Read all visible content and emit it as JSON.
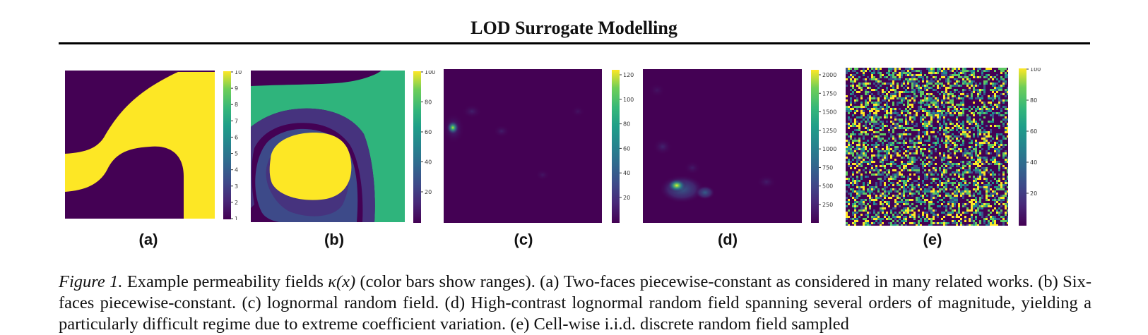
{
  "header": {
    "title": "LOD Surrogate Modelling"
  },
  "colors": {
    "viridis_low": "#440154",
    "viridis_mid_purple": "#46337e",
    "viridis_green": "#2fb47c",
    "viridis_high": "#fde725",
    "rule": "#000000"
  },
  "panels": [
    {
      "label": "(a)",
      "colorbar_ticks": [
        "10",
        "9",
        "8",
        "7",
        "6",
        "5",
        "4",
        "3",
        "2",
        "1"
      ]
    },
    {
      "label": "(b)",
      "colorbar_ticks": [
        "100",
        "80",
        "60",
        "40",
        "20"
      ]
    },
    {
      "label": "(c)",
      "colorbar_ticks": [
        "120",
        "100",
        "80",
        "60",
        "40",
        "20"
      ]
    },
    {
      "label": "(d)",
      "colorbar_ticks": [
        "2000",
        "1750",
        "1500",
        "1250",
        "1000",
        "750",
        "500",
        "250"
      ]
    },
    {
      "label": "(e)",
      "colorbar_ticks": [
        "100",
        "80",
        "60",
        "40",
        "20"
      ]
    }
  ],
  "caption": {
    "figure_label": "Figure 1.",
    "text_before_math": " Example permeability fields ",
    "math": "κ(x)",
    "text_after_math": " (color bars show ranges). (a) Two-faces piecewise-constant as considered in many related works. (b) Six-faces piecewise-constant. (c) lognormal random field. (d) High-contrast lognormal random field spanning several orders of magnitude, yielding a particularly difficult regime due to extreme coefficient variation. (e) Cell-wise i.i.d. discrete random field sampled"
  }
}
